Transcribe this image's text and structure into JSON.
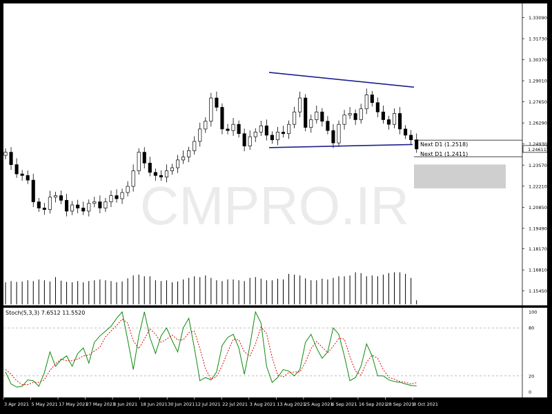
{
  "watermark": "CMPRO.IR",
  "colors": {
    "background": "#ffffff",
    "frame": "#000000",
    "candle_up": "#ffffff",
    "candle_down": "#000000",
    "trendline": "#1b1f8c",
    "stoch_main": "#0a8a0a",
    "stoch_signal": "#e00000",
    "zone": "#cfcfcf",
    "volume": "#000000"
  },
  "chart_data": [
    {
      "type": "candlestick",
      "title": "",
      "ylim": [
        1.145,
        1.34
      ],
      "price_ticks": [
        "1.33090",
        "1.31730",
        "1.30370",
        "1.29010",
        "1.27650",
        "1.26290",
        "1.24930",
        "1.23570",
        "1.22210",
        "1.20850",
        "1.19490",
        "1.18170",
        "1.16810",
        "1.15450"
      ],
      "current_price": "1.24611",
      "date_labels": [
        "3 Apr 2021",
        "5 May 2021",
        "17 May 2021",
        "27 May 2021",
        "8 Jun 2021",
        "18 Jun 2021",
        "30 Jun 2021",
        "12 Jul 2021",
        "22 Jul 2021",
        "3 Aug 2021",
        "13 Aug 2021",
        "25 Aug 2021",
        "6 Sep 2021",
        "16 Sep 2021",
        "28 Sep 2021",
        "8 Oct 2021"
      ],
      "level_labels": [
        {
          "text": "Next D1 (1.2518)",
          "price": 1.2518
        },
        {
          "text": "Next D1 (1.2411)",
          "price": 1.2411
        }
      ],
      "resistance_line": {
        "from": [
          3,
          1.2955
        ],
        "to": [
          75,
          1.286
        ]
      },
      "support_line": {
        "from": [
          48,
          1.247
        ],
        "to": [
          74,
          1.249
        ]
      },
      "zone": {
        "from_price": 1.2361,
        "to_price": 1.2207
      },
      "closes": [
        1.244,
        1.236,
        1.23,
        1.229,
        1.226,
        1.212,
        1.208,
        1.207,
        1.215,
        1.216,
        1.213,
        1.206,
        1.21,
        1.208,
        1.206,
        1.211,
        1.212,
        1.208,
        1.212,
        1.216,
        1.214,
        1.218,
        1.222,
        1.232,
        1.244,
        1.237,
        1.231,
        1.229,
        1.228,
        1.232,
        1.234,
        1.239,
        1.241,
        1.245,
        1.251,
        1.259,
        1.264,
        1.279,
        1.273,
        1.259,
        1.258,
        1.262,
        1.256,
        1.248,
        1.254,
        1.257,
        1.261,
        1.255,
        1.252,
        1.257,
        1.256,
        1.262,
        1.27,
        1.279,
        1.26,
        1.265,
        1.27,
        1.264,
        1.258,
        1.25,
        1.262,
        1.268,
        1.269,
        1.265,
        1.272,
        1.281,
        1.276,
        1.27,
        1.265,
        1.262,
        1.269,
        1.259,
        1.255,
        1.252,
        1.2461
      ]
    },
    {
      "type": "bar",
      "title": "",
      "values": [
        0.55,
        0.58,
        0.56,
        0.57,
        0.6,
        0.58,
        0.62,
        0.6,
        0.57,
        0.68,
        0.59,
        0.56,
        0.55,
        0.58,
        0.55,
        0.58,
        0.6,
        0.62,
        0.6,
        0.58,
        0.55,
        0.57,
        0.65,
        0.72,
        0.74,
        0.7,
        0.7,
        0.6,
        0.58,
        0.6,
        0.55,
        0.57,
        0.62,
        0.66,
        0.7,
        0.68,
        0.72,
        0.66,
        0.6,
        0.58,
        0.62,
        0.62,
        0.6,
        0.58,
        0.66,
        0.68,
        0.64,
        0.6,
        0.6,
        0.64,
        0.62,
        0.76,
        0.74,
        0.72,
        0.65,
        0.6,
        0.6,
        0.64,
        0.62,
        0.66,
        0.7,
        0.7,
        0.72,
        0.8,
        0.78,
        0.7,
        0.72,
        0.7,
        0.74,
        0.78,
        0.8,
        0.8,
        0.76,
        0.66,
        0.1
      ]
    },
    {
      "type": "line",
      "title": "Stoch(5,3,3) 7.6512 11.5520",
      "ylim": [
        0,
        100
      ],
      "yticks": [
        "100",
        "80",
        "20",
        "0"
      ],
      "series": [
        {
          "values": [
            25,
            10,
            6,
            7,
            15,
            14,
            7,
            24,
            50,
            32,
            40,
            45,
            32,
            48,
            55,
            36,
            62,
            70,
            76,
            82,
            92,
            100,
            65,
            28,
            70,
            100,
            68,
            48,
            70,
            80,
            64,
            50,
            80,
            92,
            55,
            14,
            18,
            15,
            25,
            58,
            68,
            72,
            55,
            22,
            58,
            100,
            86,
            32,
            12,
            18,
            28,
            26,
            20,
            28,
            62,
            72,
            55,
            42,
            50,
            80,
            72,
            45,
            14,
            18,
            32,
            60,
            45,
            20,
            20,
            15,
            13,
            12,
            10,
            8,
            7.6512
          ]
        },
        {
          "values": [
            28,
            22,
            14,
            9,
            9,
            12,
            12,
            15,
            27,
            35,
            41,
            39,
            39,
            41,
            45,
            46,
            51,
            56,
            69,
            76,
            83,
            91,
            86,
            64,
            54,
            66,
            79,
            72,
            62,
            66,
            71,
            65,
            65,
            74,
            76,
            54,
            29,
            16,
            19,
            33,
            50,
            66,
            65,
            50,
            45,
            60,
            81,
            73,
            43,
            21,
            19,
            24,
            25,
            25,
            37,
            54,
            63,
            56,
            49,
            57,
            67,
            66,
            44,
            26,
            21,
            37,
            46,
            42,
            28,
            18,
            16,
            13,
            12,
            10,
            11.552
          ]
        }
      ]
    }
  ]
}
